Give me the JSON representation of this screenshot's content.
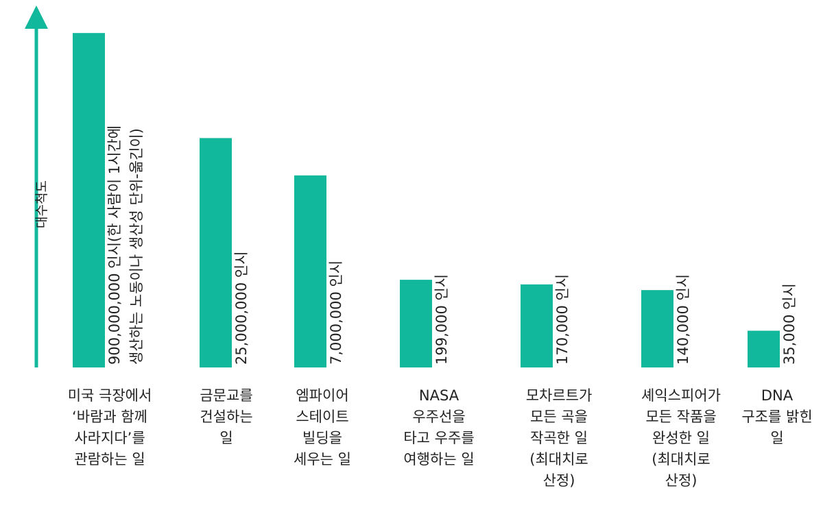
{
  "chart_data": {
    "type": "bar",
    "ylabel": "대수척도",
    "y_scale": "log",
    "ylim": [
      10000,
      2000000000
    ],
    "bar_color": "#12b89c",
    "categories": [
      [
        "미국 극장에서",
        "‘바람과 함께",
        "사라지다’를",
        "관람하는 일"
      ],
      [
        "금문교를",
        "건설하는",
        "일"
      ],
      [
        "엠파이어",
        "스테이트",
        "빌딩을",
        "세우는 일"
      ],
      [
        "NASA",
        "우주선을",
        "타고 우주를",
        "여행하는 일"
      ],
      [
        "모차르트가",
        "모든 곡을",
        "작곡한 일",
        "(최대치로",
        "산정)"
      ],
      [
        "셰익스피어가",
        "모든 작품을",
        "완성한 일",
        "(최대치로",
        "산정)"
      ],
      [
        "DNA",
        "구조를 밝힌",
        "일"
      ]
    ],
    "values": [
      900000000,
      25000000,
      7000000,
      199000,
      170000,
      140000,
      35000
    ],
    "value_labels": [
      [
        "900,000,000 인시(한 사람이 1시간에",
        "생산하는 노동이나 생산성 단위-옮긴이)"
      ],
      [
        "25,000,000 인시"
      ],
      [
        "7,000,000 인시"
      ],
      [
        "199,000 인시"
      ],
      [
        "170,000 인시"
      ],
      [
        "140,000 인시"
      ],
      [
        "35,000 인시"
      ]
    ]
  }
}
